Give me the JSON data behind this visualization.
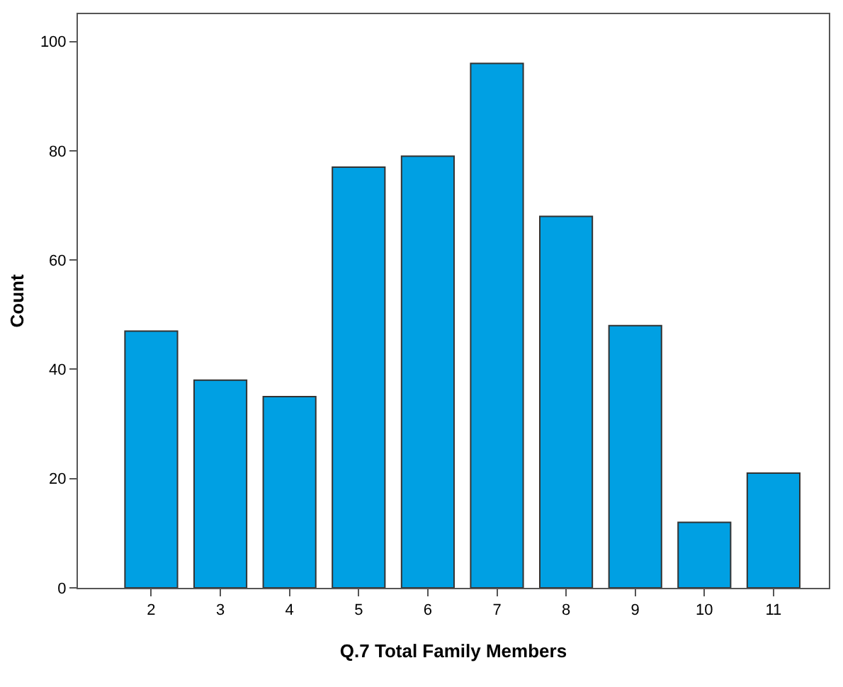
{
  "chart_data": {
    "type": "bar",
    "xlabel": "Q.7 Total Family Members",
    "ylabel": "Count",
    "categories": [
      "2",
      "3",
      "4",
      "5",
      "6",
      "7",
      "8",
      "9",
      "10",
      "11"
    ],
    "values": [
      47,
      38,
      35,
      77,
      79,
      96,
      68,
      48,
      12,
      21
    ],
    "color": "#00a0e3",
    "ylim": [
      0,
      105
    ],
    "yticks": [
      0,
      20,
      40,
      60,
      80,
      100
    ]
  }
}
